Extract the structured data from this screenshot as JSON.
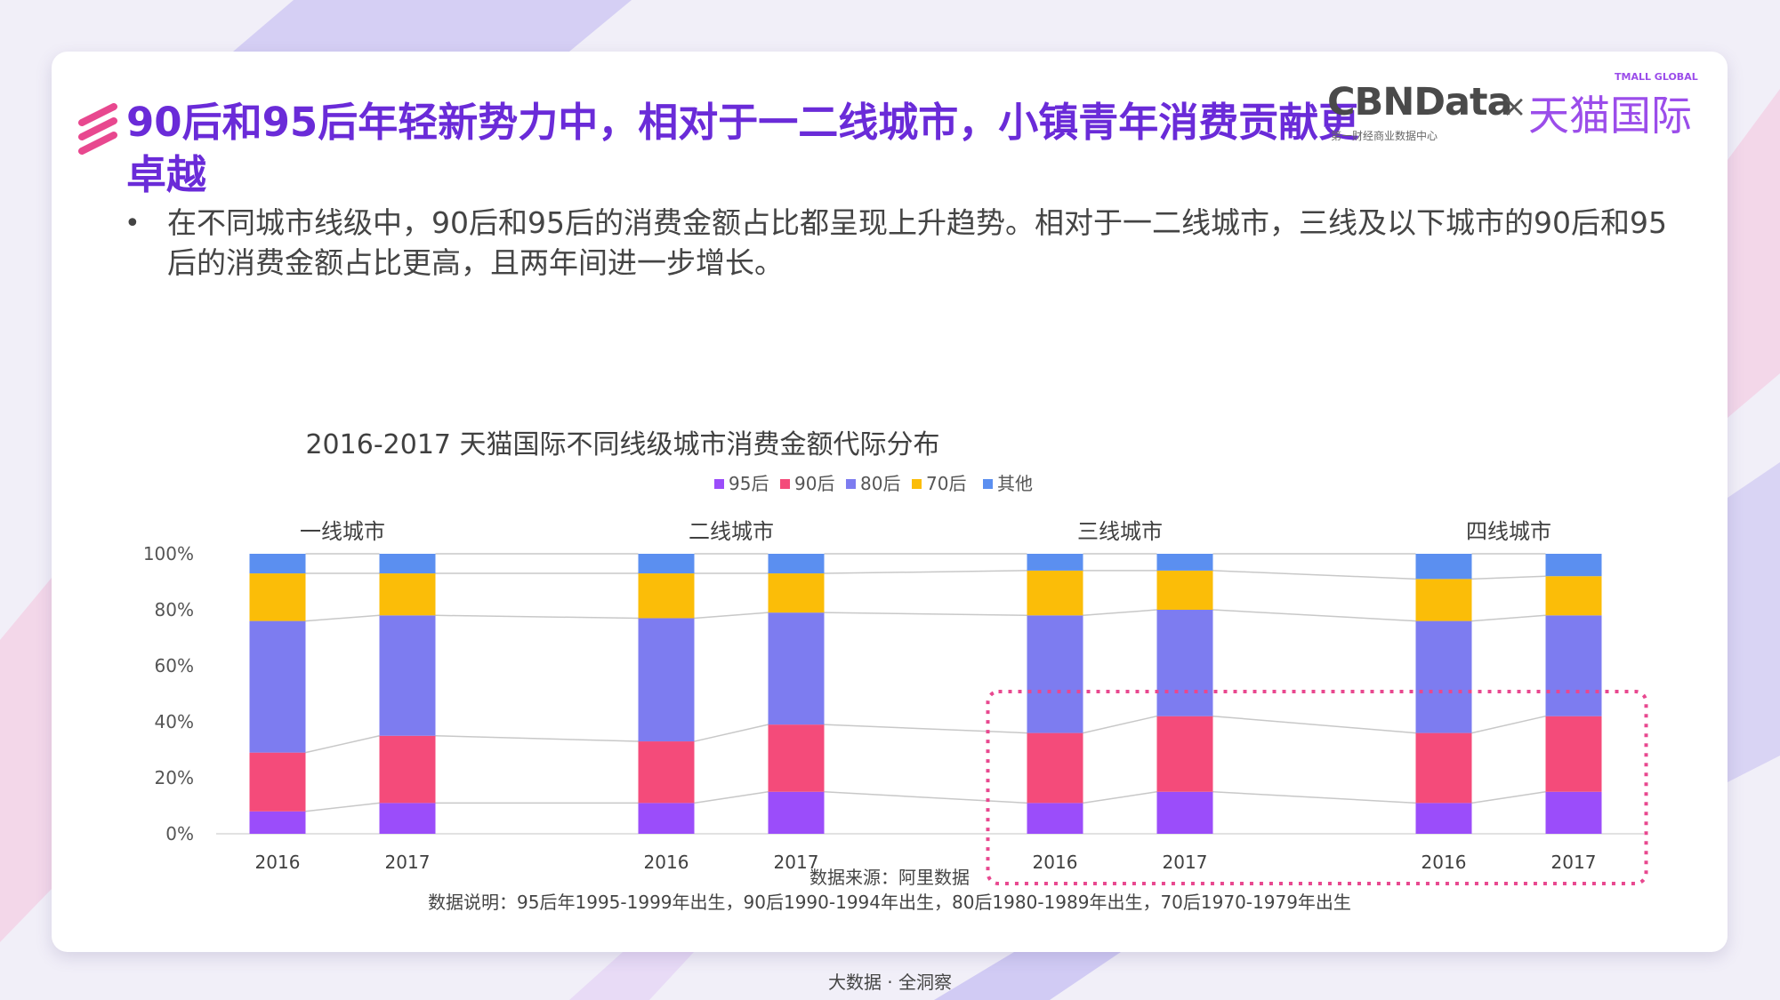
{
  "header": {
    "title": "90后和95后年轻新势力中，相对于一二线城市，小镇青年消费贡献更卓越",
    "description": "在不同城市线级中，90后和95后的消费金额占比都呈现上升趋势。相对于一二线城市，三线及以下城市的90后和95后的消费金额占比更高，且两年间进一步增长。",
    "bullet": "•"
  },
  "logo": {
    "brand1": "CBNData",
    "brand1_sub": "第一财经商业数据中心",
    "separator": "×",
    "brand2": "天猫国际",
    "brand2_en": "TMALL GLOBAL"
  },
  "chart_data": {
    "type": "bar",
    "stacked": true,
    "title": "2016-2017 天猫国际不同线级城市消费金额代际分布",
    "groups": [
      "一线城市",
      "二线城市",
      "三线城市",
      "四线城市"
    ],
    "categories": [
      "2016",
      "2017",
      "2016",
      "2017",
      "2016",
      "2017",
      "2016",
      "2017"
    ],
    "ylim": [
      0,
      100
    ],
    "yticks": [
      "0%",
      "20%",
      "40%",
      "60%",
      "80%",
      "100%"
    ],
    "legend_position": "top",
    "grid": false,
    "series": [
      {
        "name": "95后",
        "color": "#9b4dfa",
        "values": [
          8,
          11,
          11,
          15,
          11,
          15,
          11,
          15
        ]
      },
      {
        "name": "90后",
        "color": "#f44b7a",
        "values": [
          21,
          24,
          22,
          24,
          25,
          27,
          25,
          27
        ]
      },
      {
        "name": "80后",
        "color": "#7d7cf0",
        "values": [
          47,
          43,
          44,
          40,
          42,
          38,
          40,
          36
        ]
      },
      {
        "name": "70后",
        "color": "#fbbd08",
        "values": [
          17,
          15,
          16,
          14,
          16,
          14,
          15,
          14
        ]
      },
      {
        "name": "其他",
        "color": "#5b8ff0",
        "values": [
          7,
          7,
          7,
          7,
          6,
          6,
          9,
          8
        ]
      }
    ],
    "highlight": [
      "三线城市",
      "四线城市"
    ]
  },
  "source": {
    "line1": "数据来源：阿里数据",
    "line2": "数据说明：95后年1995-1999年出生，90后1990-1994年出生，80后1980-1989年出生，70后1970-1979年出生"
  },
  "footer": "大数据 · 全洞察"
}
